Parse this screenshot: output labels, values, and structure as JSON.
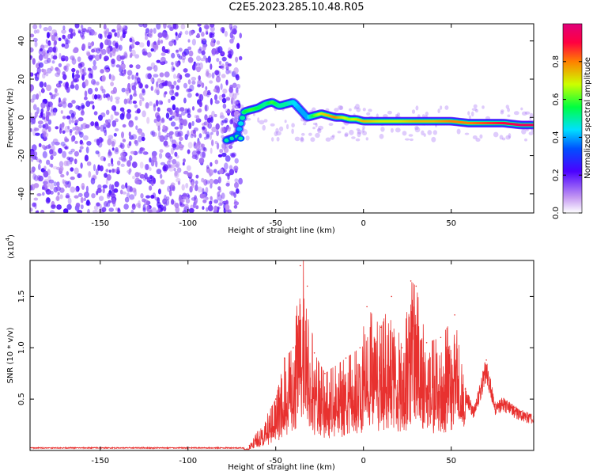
{
  "title": "C2E5.2023.285.10.48.R05",
  "chart_data": [
    {
      "type": "heatmap",
      "xlabel": "Height of straight line (km)",
      "ylabel": "Frequency (Hz)",
      "xlim": [
        -190,
        97
      ],
      "ylim": [
        -50,
        49
      ],
      "xticks": [
        -150,
        -100,
        -50,
        0,
        50
      ],
      "yticks": [
        -40,
        -20,
        0,
        20,
        40
      ],
      "noise_region_x": [
        -190,
        -70
      ],
      "signal_track": {
        "x": [
          -78,
          -72,
          -68,
          -64,
          -60,
          -56,
          -52,
          -48,
          -44,
          -40,
          -36,
          -32,
          -28,
          -24,
          -20,
          -16,
          -12,
          -8,
          -4,
          0,
          10,
          20,
          30,
          40,
          50,
          60,
          70,
          80,
          90,
          97
        ],
        "y": [
          -12,
          -10,
          3,
          4,
          5,
          7,
          8,
          6,
          7,
          8,
          4,
          0,
          1,
          2,
          1,
          0,
          0,
          -1,
          -1,
          -2,
          -2,
          -2,
          -2,
          -2,
          -2,
          -3,
          -3,
          -3,
          -4,
          -4
        ],
        "amplitude": [
          0.3,
          0.35,
          0.55,
          0.6,
          0.55,
          0.5,
          0.6,
          0.5,
          0.5,
          0.45,
          0.4,
          0.4,
          0.6,
          0.7,
          0.75,
          0.8,
          0.7,
          0.65,
          0.7,
          0.75,
          0.7,
          0.7,
          0.75,
          0.75,
          0.8,
          0.8,
          0.85,
          0.9,
          0.95,
          0.95
        ]
      },
      "colorbar": {
        "label": "Normalized spectral amplitude",
        "ticks": [
          "0.0",
          "0.2",
          "0.4",
          "0.6",
          "0.8"
        ],
        "range": [
          0,
          1
        ]
      },
      "grid": false
    },
    {
      "type": "line",
      "xlabel": "Height of straight line (km)",
      "ylabel": "SNR (10 * v/v)",
      "y_multiplier": "(x10",
      "y_multiplier_exp": "4",
      "y_multiplier_close": ")",
      "xlim": [
        -190,
        97
      ],
      "ylim": [
        0,
        1.85
      ],
      "xticks": [
        -150,
        -100,
        -50,
        0,
        50
      ],
      "yticks": [
        "0.5",
        "1.0",
        "1.5"
      ],
      "color": "#e8312f",
      "peaks": {
        "x": [
          -65,
          -50,
          -45,
          -40,
          -36,
          -34,
          -32,
          -28,
          -22,
          -10,
          -2,
          2,
          10,
          16,
          22,
          27,
          30,
          36,
          44,
          52,
          58,
          63,
          70,
          75,
          80,
          86,
          90,
          97
        ],
        "y": [
          0.05,
          0.5,
          0.9,
          1.0,
          1.8,
          1.88,
          1.6,
          0.95,
          0.75,
          0.9,
          1.0,
          1.4,
          1.2,
          1.5,
          1.0,
          1.65,
          1.6,
          1.05,
          1.1,
          1.32,
          0.6,
          0.4,
          0.88,
          0.45,
          0.5,
          0.42,
          0.38,
          0.33
        ]
      },
      "baseline_level": 0.02,
      "grid": false
    }
  ]
}
